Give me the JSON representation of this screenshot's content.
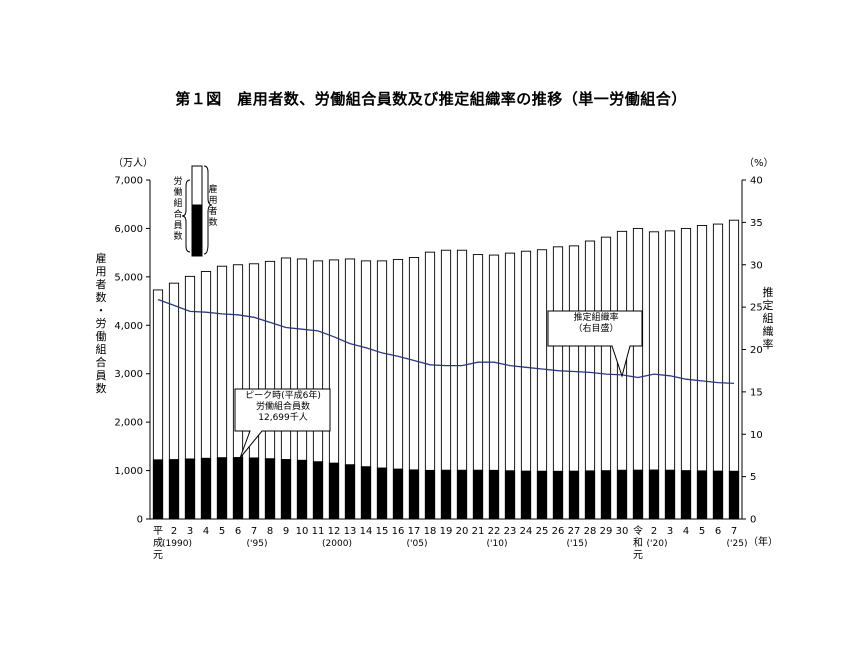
{
  "title": "第１図　雇用者数、労働組合員数及び推定組織率の推移（単一労働組合）",
  "chart_data": {
    "type": "bar",
    "left_unit": "（万人）",
    "right_unit": "（%）",
    "ylabel_left": "雇用者数・労働組合員数",
    "ylabel_right": "推定組織率",
    "ylim_left": [
      0,
      7000
    ],
    "ylim_right": [
      0,
      40
    ],
    "left_ticks": [
      "0",
      "1,000",
      "2,000",
      "3,000",
      "4,000",
      "5,000",
      "6,000",
      "7,000"
    ],
    "right_ticks": [
      "0",
      "5",
      "10",
      "15",
      "20",
      "25",
      "30",
      "35",
      "40"
    ],
    "x_unit": "（年）",
    "categories": [
      "平成元",
      "2",
      "3",
      "4",
      "5",
      "6",
      "7",
      "8",
      "9",
      "10",
      "11",
      "12",
      "13",
      "14",
      "15",
      "16",
      "17",
      "18",
      "19",
      "20",
      "21",
      "22",
      "23",
      "24",
      "25",
      "26",
      "27",
      "28",
      "29",
      "30",
      "令和元",
      "2",
      "3",
      "4",
      "5",
      "6",
      "7"
    ],
    "sub_labels": [
      {
        "index": 1,
        "text": "(1990)"
      },
      {
        "index": 6,
        "text": "('95)"
      },
      {
        "index": 11,
        "text": "(2000)"
      },
      {
        "index": 16,
        "text": "('05)"
      },
      {
        "index": 21,
        "text": "('10)"
      },
      {
        "index": 26,
        "text": "('15)"
      },
      {
        "index": 31,
        "text": "('20)"
      },
      {
        "index": 36,
        "text": "('25)"
      }
    ],
    "series": [
      {
        "name": "雇用者数",
        "values": [
          4730,
          4870,
          5010,
          5110,
          5220,
          5250,
          5270,
          5320,
          5390,
          5370,
          5330,
          5350,
          5370,
          5330,
          5330,
          5360,
          5400,
          5510,
          5550,
          5550,
          5460,
          5450,
          5490,
          5530,
          5560,
          5620,
          5640,
          5740,
          5820,
          5940,
          6000,
          5930,
          5950,
          6000,
          6060,
          6090,
          6170
        ]
      },
      {
        "name": "労働組合員数",
        "values": [
          1222,
          1227,
          1240,
          1254,
          1266,
          1270,
          1261,
          1245,
          1229,
          1213,
          1183,
          1154,
          1121,
          1080,
          1053,
          1031,
          1014,
          1004,
          1008,
          1007,
          1008,
          1005,
          996,
          989,
          987,
          985,
          988,
          994,
          998,
          1007,
          1009,
          1012,
          1008,
          999,
          994,
          989,
          986
        ]
      },
      {
        "name": "推定組織率",
        "values": [
          25.9,
          25.2,
          24.5,
          24.4,
          24.2,
          24.1,
          23.8,
          23.2,
          22.6,
          22.4,
          22.2,
          21.5,
          20.7,
          20.2,
          19.6,
          19.2,
          18.7,
          18.2,
          18.1,
          18.1,
          18.5,
          18.5,
          18.1,
          17.9,
          17.7,
          17.5,
          17.4,
          17.3,
          17.1,
          17.0,
          16.7,
          17.1,
          16.9,
          16.5,
          16.3,
          16.1,
          16.0
        ]
      }
    ],
    "legend": {
      "black_label": "労働組合員数",
      "white_label": "雇用者数"
    },
    "annotations": [
      {
        "lines": [
          "ピーク時(平成6年)",
          "労働組合員数",
          "12,699千人"
        ]
      },
      {
        "lines": [
          "推定組織率",
          "（右目盛）"
        ]
      }
    ]
  }
}
